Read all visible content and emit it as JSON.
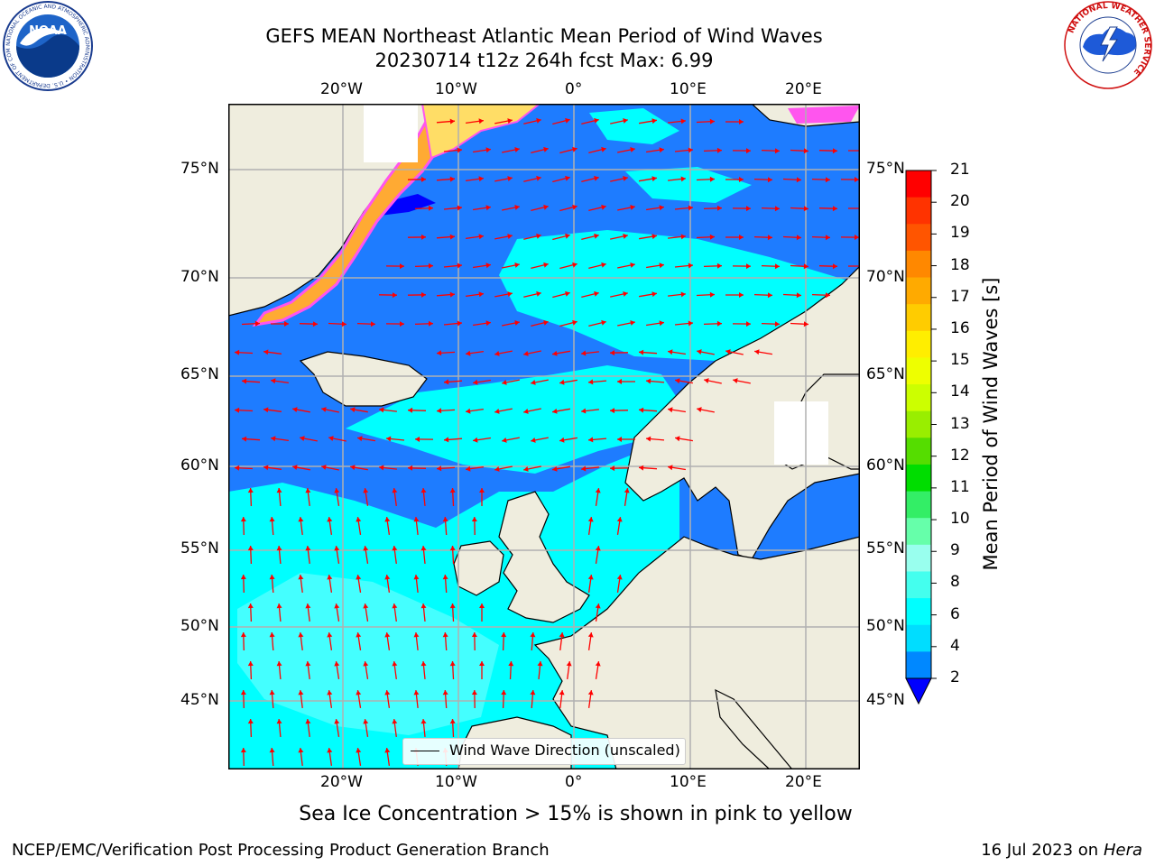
{
  "title": {
    "line1": "GEFS MEAN Northeast Atlantic Mean Period of Wind Waves",
    "line2": "20230714 t12z 264h fcst   Max: 6.99"
  },
  "axes": {
    "top_lon_labels": [
      "20°W",
      "10°W",
      "0°",
      "10°E",
      "20°E"
    ],
    "bottom_lon_labels": [
      "20°W",
      "10°W",
      "0°",
      "10°E",
      "20°E"
    ],
    "lat_labels": [
      "75°N",
      "70°N",
      "65°N",
      "60°N",
      "55°N",
      "50°N",
      "45°N"
    ]
  },
  "colorbar": {
    "label": "Mean Period of Wind Waves [s]",
    "ticks": [
      "2",
      "4",
      "6",
      "8",
      "9",
      "10",
      "11",
      "12",
      "13",
      "14",
      "15",
      "16",
      "17",
      "18",
      "19",
      "20",
      "21"
    ],
    "colors_top_to_bottom": [
      "#ff0000",
      "#ff3300",
      "#ff5500",
      "#ff8800",
      "#ffaa00",
      "#ffcc00",
      "#ffee00",
      "#eeff00",
      "#ccff00",
      "#99ee00",
      "#55dd00",
      "#00dd00",
      "#33ee66",
      "#66ffaa",
      "#99ffee",
      "#44ffee",
      "#00ffff",
      "#00ddff",
      "#0088ff"
    ],
    "extend_color": "#0000ff"
  },
  "legend": {
    "text": "Wind Wave Direction (unscaled)"
  },
  "map": {
    "ocean_colors": {
      "period_2_4": "#1e7cff",
      "period_4_6": "#00ffff",
      "period_6_8": "#55ffff",
      "below_2": "#0000ff",
      "land": "#efedde",
      "ice_or_missing": "#ffffff",
      "ice_pink": "#ff55ee",
      "ice_orange": "#ffaa33",
      "ice_yellow": "#ffdd66"
    },
    "arrow_color": "#ff0000"
  },
  "note": "Sea Ice Concentration > 15% is shown in pink to yellow",
  "footer": {
    "left": "NCEP/EMC/Verification Post Processing Product Generation Branch",
    "right_date": "16 Jul 2023 on ",
    "right_machine": "Hera"
  },
  "logos": {
    "noaa_center": "NOAA",
    "noaa_ring": "NATIONAL OCEANIC AND ATMOSPHERIC ADMINISTRATION • U.S. DEPARTMENT OF COMMERCE",
    "nws_ring": "NATIONAL WEATHER SERVICE"
  }
}
